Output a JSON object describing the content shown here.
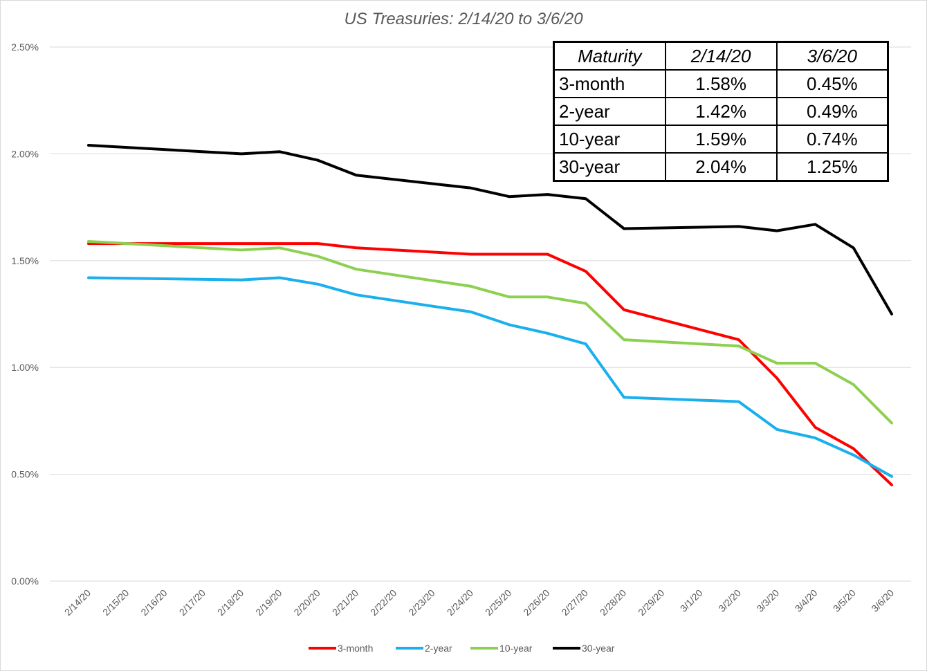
{
  "chart_data": {
    "type": "line",
    "title": "US Treasuries: 2/14/20 to 3/6/20",
    "xlabel": "",
    "ylabel": "",
    "ylim": [
      0,
      2.5
    ],
    "yticks": [
      "0.00%",
      "0.50%",
      "1.00%",
      "1.50%",
      "2.00%",
      "2.50%"
    ],
    "grid": "horizontal",
    "legend_position": "bottom",
    "x": [
      "2/14/20",
      "2/15/20",
      "2/16/20",
      "2/17/20",
      "2/18/20",
      "2/19/20",
      "2/20/20",
      "2/21/20",
      "2/22/20",
      "2/23/20",
      "2/24/20",
      "2/25/20",
      "2/26/20",
      "2/27/20",
      "2/28/20",
      "2/29/20",
      "3/1/20",
      "3/2/20",
      "3/3/20",
      "3/4/20",
      "3/5/20",
      "3/6/20"
    ],
    "series": [
      {
        "name": "3-month",
        "color": "#ff0000",
        "x": [
          "2/14/20",
          "2/18/20",
          "2/19/20",
          "2/20/20",
          "2/21/20",
          "2/24/20",
          "2/25/20",
          "2/26/20",
          "2/27/20",
          "2/28/20",
          "3/2/20",
          "3/3/20",
          "3/4/20",
          "3/5/20",
          "3/6/20"
        ],
        "values": [
          1.58,
          1.58,
          1.58,
          1.58,
          1.56,
          1.53,
          1.53,
          1.53,
          1.45,
          1.27,
          1.13,
          0.95,
          0.72,
          0.62,
          0.45
        ]
      },
      {
        "name": "2-year",
        "color": "#1aafed",
        "x": [
          "2/14/20",
          "2/18/20",
          "2/19/20",
          "2/20/20",
          "2/21/20",
          "2/24/20",
          "2/25/20",
          "2/26/20",
          "2/27/20",
          "2/28/20",
          "3/2/20",
          "3/3/20",
          "3/4/20",
          "3/5/20",
          "3/6/20"
        ],
        "values": [
          1.42,
          1.41,
          1.42,
          1.39,
          1.34,
          1.26,
          1.2,
          1.16,
          1.11,
          0.86,
          0.84,
          0.71,
          0.67,
          0.59,
          0.49
        ]
      },
      {
        "name": "10-year",
        "color": "#8dd050",
        "x": [
          "2/14/20",
          "2/18/20",
          "2/19/20",
          "2/20/20",
          "2/21/20",
          "2/24/20",
          "2/25/20",
          "2/26/20",
          "2/27/20",
          "2/28/20",
          "3/2/20",
          "3/3/20",
          "3/4/20",
          "3/5/20",
          "3/6/20"
        ],
        "values": [
          1.59,
          1.55,
          1.56,
          1.52,
          1.46,
          1.38,
          1.33,
          1.33,
          1.3,
          1.13,
          1.1,
          1.02,
          1.02,
          0.92,
          0.74
        ]
      },
      {
        "name": "30-year",
        "color": "#000000",
        "x": [
          "2/14/20",
          "2/18/20",
          "2/19/20",
          "2/20/20",
          "2/21/20",
          "2/24/20",
          "2/25/20",
          "2/26/20",
          "2/27/20",
          "2/28/20",
          "3/2/20",
          "3/3/20",
          "3/4/20",
          "3/5/20",
          "3/6/20"
        ],
        "values": [
          2.04,
          2.0,
          2.01,
          1.97,
          1.9,
          1.84,
          1.8,
          1.81,
          1.79,
          1.65,
          1.66,
          1.64,
          1.67,
          1.56,
          1.25
        ]
      }
    ]
  },
  "table": {
    "headers": [
      "Maturity",
      "2/14/20",
      "3/6/20"
    ],
    "rows": [
      [
        "3-month",
        "1.58%",
        "0.45%"
      ],
      [
        "2-year",
        "1.42%",
        "0.49%"
      ],
      [
        "10-year",
        "1.59%",
        "0.74%"
      ],
      [
        "30-year",
        "2.04%",
        "1.25%"
      ]
    ]
  }
}
